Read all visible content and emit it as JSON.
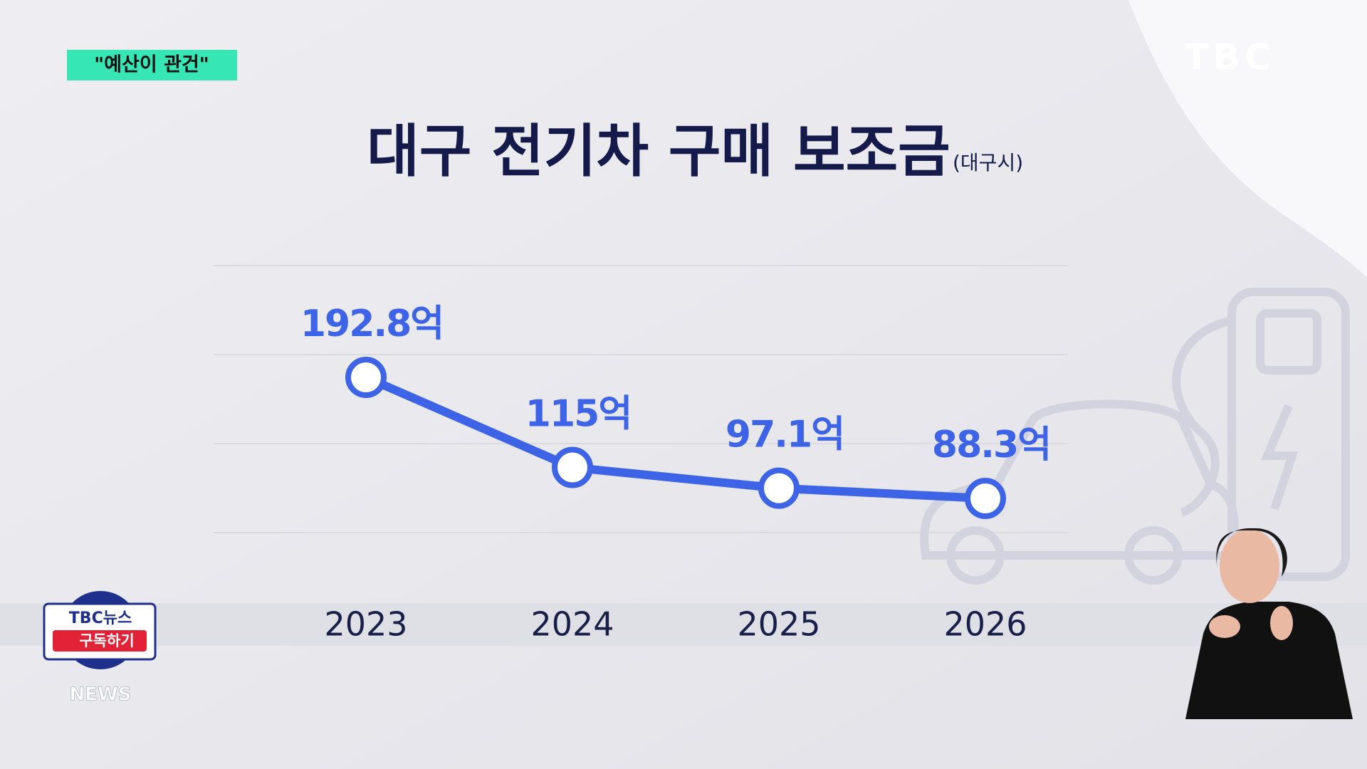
{
  "chart_data": {
    "type": "line",
    "title": "대구 전기차 구매 보조금",
    "subtitle": "(대구시)",
    "categories": [
      "2023",
      "2024",
      "2025",
      "2026"
    ],
    "values": [
      192.8,
      115,
      97.1,
      88.3
    ],
    "value_labels": [
      "192.8억",
      "115억",
      "97.1억",
      "88.3억"
    ],
    "color": "#3d63e6",
    "ylim": [
      60,
      210
    ]
  },
  "overlay": {
    "tag": "\"예산이 관건\"",
    "logo": "TBC",
    "badge_top": "TBC뉴스",
    "badge_button": "구독하기",
    "badge_bottom": "NEWS"
  }
}
